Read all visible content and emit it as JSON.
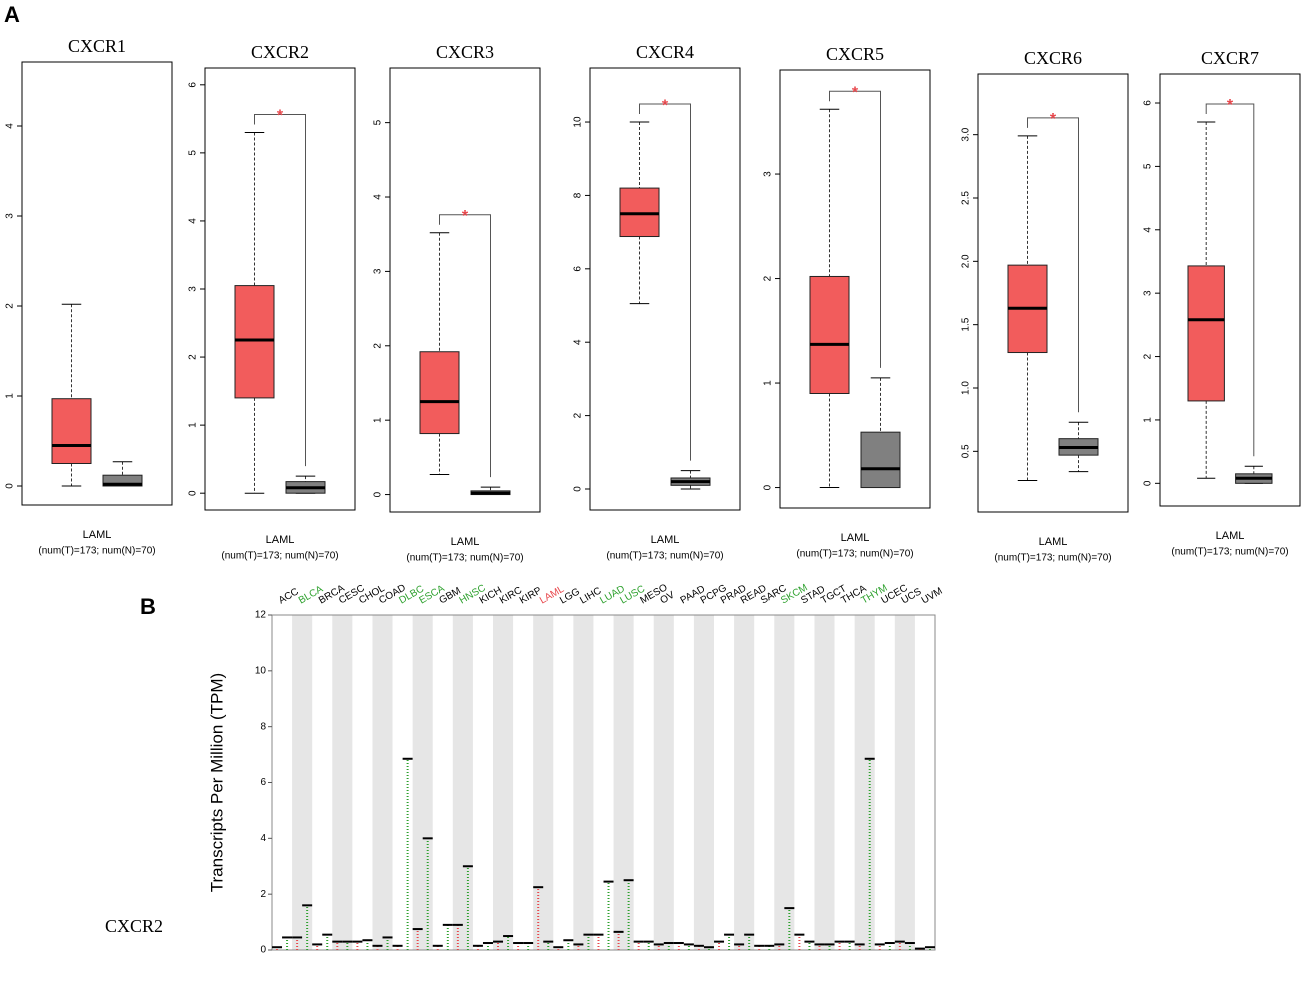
{
  "panel_a": {
    "label": "A",
    "charts": [
      {
        "type": "box",
        "title": "CXCR1",
        "ylim": [
          -0.1,
          4.6
        ],
        "yticks": [
          0,
          1,
          2,
          3,
          4
        ],
        "category": "LAML",
        "sample_label": "(num(T)=173; num(N)=70)",
        "significance": null,
        "boxes": [
          {
            "color": "#f25c5c",
            "whisker_low": 0,
            "q1": 0.25,
            "median": 0.45,
            "q3": 0.97,
            "whisker_high": 2.02
          },
          {
            "color": "#808080",
            "whisker_low": 0,
            "q1": 0.0,
            "median": 0.02,
            "q3": 0.12,
            "whisker_high": 0.27
          }
        ]
      },
      {
        "type": "box",
        "title": "CXCR2",
        "ylim": [
          -0.1,
          6.1
        ],
        "yticks": [
          0,
          1,
          2,
          3,
          4,
          5,
          6
        ],
        "category": "LAML",
        "sample_label": "(num(T)=173; num(N)=70)",
        "significance": "*",
        "boxes": [
          {
            "color": "#f25c5c",
            "whisker_low": 0,
            "q1": 1.4,
            "median": 2.25,
            "q3": 3.05,
            "whisker_high": 5.3
          },
          {
            "color": "#808080",
            "whisker_low": 0,
            "q1": 0,
            "median": 0.08,
            "q3": 0.17,
            "whisker_high": 0.25
          }
        ]
      },
      {
        "type": "box",
        "title": "CXCR3",
        "ylim": [
          -0.1,
          5.6
        ],
        "yticks": [
          0,
          1,
          2,
          3,
          4,
          5
        ],
        "category": "LAML",
        "sample_label": "(num(T)=173; num(N)=70)",
        "significance": "*",
        "boxes": [
          {
            "color": "#f25c5c",
            "whisker_low": 0.27,
            "q1": 0.82,
            "median": 1.25,
            "q3": 1.92,
            "whisker_high": 3.52
          },
          {
            "color": "#808080",
            "whisker_low": 0,
            "q1": 0,
            "median": 0.02,
            "q3": 0.05,
            "whisker_high": 0.1
          }
        ]
      },
      {
        "type": "box",
        "title": "CXCR4",
        "ylim": [
          -0.3,
          11.2
        ],
        "yticks": [
          0,
          2,
          4,
          6,
          8,
          10
        ],
        "category": "LAML",
        "sample_label": "(num(T)=173; num(N)=70)",
        "significance": "*",
        "boxes": [
          {
            "color": "#f25c5c",
            "whisker_low": 5.05,
            "q1": 6.88,
            "median": 7.5,
            "q3": 8.2,
            "whisker_high": 10
          },
          {
            "color": "#808080",
            "whisker_low": 0,
            "q1": 0.1,
            "median": 0.2,
            "q3": 0.3,
            "whisker_high": 0.5
          }
        ]
      },
      {
        "type": "box",
        "title": "CXCR5",
        "ylim": [
          -0.1,
          3.9
        ],
        "yticks": [
          0,
          1,
          2,
          3
        ],
        "category": "LAML",
        "sample_label": "(num(T)=173; num(N)=70)",
        "significance": "*",
        "boxes": [
          {
            "color": "#f25c5c",
            "whisker_low": 0,
            "q1": 0.9,
            "median": 1.37,
            "q3": 2.02,
            "whisker_high": 3.62
          },
          {
            "color": "#808080",
            "whisker_low": 0,
            "q1": 0,
            "median": 0.18,
            "q3": 0.53,
            "whisker_high": 1.05
          }
        ]
      },
      {
        "type": "box",
        "title": "CXCR6",
        "ylim": [
          0.1,
          3.4
        ],
        "yticks": [
          {
            "value": 0.5,
            "label": "0.5"
          },
          {
            "value": 1,
            "label": "1.0"
          },
          {
            "value": 1.5,
            "label": "1.5"
          },
          {
            "value": 2,
            "label": "2.0"
          },
          {
            "value": 2.5,
            "label": "2.5"
          },
          {
            "value": 3,
            "label": "3.0"
          }
        ],
        "category": "LAML",
        "sample_label": "(num(T)=173; num(N)=70)",
        "significance": "*",
        "boxes": [
          {
            "color": "#f25c5c",
            "whisker_low": 0.27,
            "q1": 1.28,
            "median": 1.63,
            "q3": 1.97,
            "whisker_high": 2.99
          },
          {
            "color": "#808080",
            "whisker_low": 0.34,
            "q1": 0.47,
            "median": 0.53,
            "q3": 0.6,
            "whisker_high": 0.73
          }
        ]
      },
      {
        "type": "box",
        "title": "CXCR7",
        "ylim": [
          -0.2,
          6.3
        ],
        "yticks": [
          0,
          1,
          2,
          3,
          4,
          5,
          6
        ],
        "category": "LAML",
        "sample_label": "(num(T)=173; num(N)=70)",
        "significance": "*",
        "boxes": [
          {
            "color": "#f25c5c",
            "whisker_low": 0.08,
            "q1": 1.3,
            "median": 2.58,
            "q3": 3.43,
            "whisker_high": 5.7
          },
          {
            "color": "#808080",
            "whisker_low": 0,
            "q1": 0,
            "median": 0.08,
            "q3": 0.15,
            "whisker_high": 0.27
          }
        ]
      }
    ]
  },
  "panel_b": {
    "label": "B",
    "gene": "CXCR2",
    "chart_data": {
      "type": "dot",
      "ylabel": "Transcripts Per Million (TPM)",
      "ylim": [
        0,
        12
      ],
      "yticks": [
        0,
        2,
        4,
        6,
        8,
        10,
        12
      ],
      "categories": [
        "ACC",
        "BLCA",
        "BRCA",
        "CESC",
        "CHOL",
        "COAD",
        "DLBC",
        "ESCA",
        "GBM",
        "HNSC",
        "KICH",
        "KIRC",
        "KIRP",
        "LAML",
        "LGG",
        "LIHC",
        "LUAD",
        "LUSC",
        "MESO",
        "OV",
        "PAAD",
        "PCPG",
        "PRAD",
        "READ",
        "SARC",
        "SKCM",
        "STAD",
        "TGCT",
        "THCA",
        "THYM",
        "UCEC",
        "UCS",
        "UVM"
      ],
      "category_colors": [
        "#000000",
        "#2ca02c",
        "#000000",
        "#000000",
        "#000000",
        "#000000",
        "#2ca02c",
        "#2ca02c",
        "#000000",
        "#2ca02c",
        "#000000",
        "#000000",
        "#000000",
        "#e8474c",
        "#000000",
        "#000000",
        "#2ca02c",
        "#2ca02c",
        "#000000",
        "#000000",
        "#000000",
        "#000000",
        "#000000",
        "#000000",
        "#000000",
        "#2ca02c",
        "#000000",
        "#000000",
        "#000000",
        "#2ca02c",
        "#000000",
        "#000000",
        "#000000"
      ],
      "tumor_color": "#e8474c",
      "normal_color": "#2ca02c",
      "tumor_medians": [
        0.1,
        0.45,
        0.2,
        0.3,
        0.3,
        0.15,
        0.15,
        0.75,
        0.15,
        0.9,
        0.15,
        0.3,
        0.25,
        2.25,
        0.1,
        0.2,
        0.55,
        0.65,
        0.3,
        0.2,
        0.25,
        0.15,
        0.3,
        0.2,
        0.15,
        0.2,
        0.55,
        0.2,
        0.3,
        0.2,
        0.2,
        0.3,
        0.05
      ],
      "normal_medians": [
        0.45,
        1.6,
        0.55,
        0.3,
        0.35,
        0.45,
        6.85,
        4.0,
        0.9,
        3.0,
        0.25,
        0.5,
        0.25,
        0.3,
        0.35,
        0.55,
        2.45,
        2.5,
        0.3,
        0.25,
        0.2,
        0.1,
        0.55,
        0.55,
        0.15,
        1.5,
        0.3,
        0.2,
        0.3,
        6.85,
        0.25,
        0.25,
        0.1
      ]
    }
  }
}
